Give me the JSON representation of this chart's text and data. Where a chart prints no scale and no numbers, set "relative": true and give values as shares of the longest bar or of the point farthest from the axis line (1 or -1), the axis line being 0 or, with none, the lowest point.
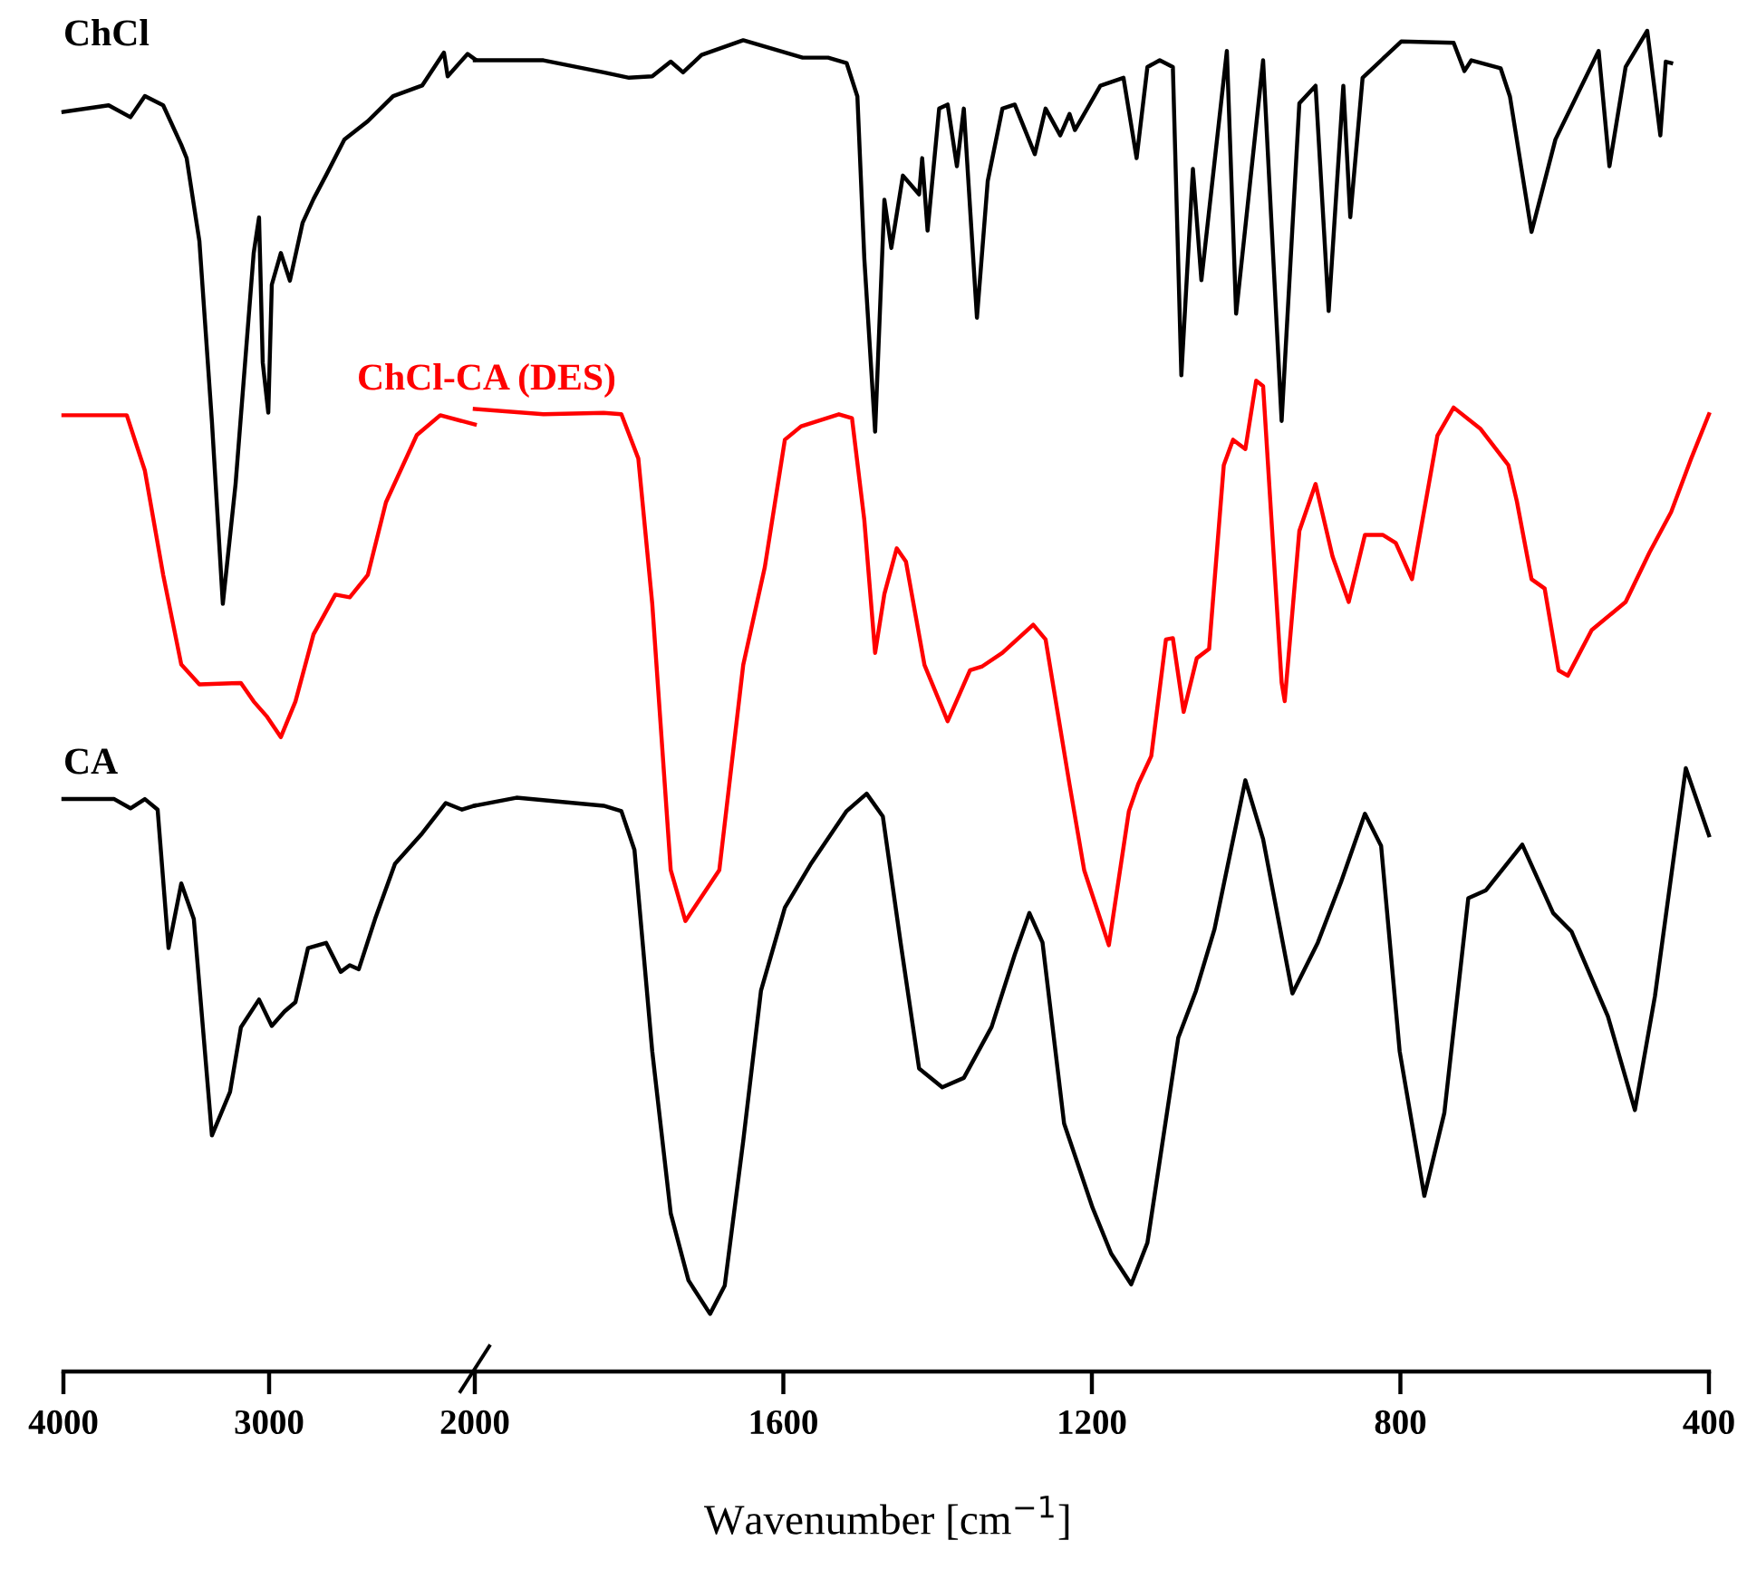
{
  "chart_data": [
    {
      "type": "line",
      "relative": true,
      "xlim": [
        4000,
        2000
      ],
      "xticks": [
        4000,
        3000,
        2000
      ],
      "line_style": "solid",
      "series": [
        {
          "name": "ChCl",
          "color": "#000000",
          "x": [
            4000,
            3780,
            3674,
            3604,
            3515,
            3427,
            3401,
            3339,
            3278,
            3225,
            3163,
            3075,
            3049,
            3031,
            3004,
            2987,
            2943,
            2899,
            2837,
            2784,
            2723,
            2634,
            2520,
            2397,
            2256,
            2150,
            2132,
            2035,
            2000
          ],
          "values": [
            0.955,
            0.96,
            0.951,
            0.967,
            0.96,
            0.93,
            0.92,
            0.857,
            0.72,
            0.582,
            0.673,
            0.848,
            0.875,
            0.765,
            0.727,
            0.824,
            0.848,
            0.827,
            0.871,
            0.889,
            0.907,
            0.934,
            0.948,
            0.967,
            0.975,
            1.0,
            0.982,
            0.999,
            0.995
          ]
        },
        {
          "name": "ChCl-CA (DES)",
          "color": "#ff0000",
          "x": [
            4000,
            3692,
            3604,
            3515,
            3427,
            3339,
            3137,
            3075,
            3013,
            2943,
            2872,
            2784,
            2678,
            2608,
            2520,
            2432,
            2282,
            2168,
            2000
          ],
          "values": [
            0.725,
            0.725,
            0.683,
            0.604,
            0.536,
            0.521,
            0.522,
            0.508,
            0.497,
            0.481,
            0.508,
            0.559,
            0.589,
            0.587,
            0.604,
            0.659,
            0.71,
            0.725,
            0.718
          ]
        },
        {
          "name": "CA",
          "color": "#000000",
          "x": [
            4000,
            3753,
            3674,
            3604,
            3542,
            3489,
            3427,
            3366,
            3278,
            3190,
            3137,
            3049,
            2987,
            2925,
            2872,
            2811,
            2723,
            2652,
            2608,
            2564,
            2485,
            2388,
            2256,
            2141,
            2062,
            2000
          ],
          "values": [
            0.434,
            0.434,
            0.427,
            0.434,
            0.426,
            0.321,
            0.37,
            0.343,
            0.179,
            0.212,
            0.261,
            0.282,
            0.262,
            0.273,
            0.28,
            0.321,
            0.325,
            0.303,
            0.308,
            0.305,
            0.343,
            0.385,
            0.408,
            0.431,
            0.426,
            0.429
          ]
        }
      ]
    },
    {
      "type": "line",
      "relative": true,
      "xlim": [
        2000,
        400
      ],
      "xticks": [
        1600,
        1200,
        800,
        400
      ],
      "xlabel": "Wavenumber [cm$^{−1}$]",
      "line_style": "solid",
      "series": [
        {
          "color": "#000000",
          "x": [
            2000,
            1911,
            1833,
            1800,
            1770,
            1746,
            1730,
            1706,
            1652,
            1575,
            1542,
            1518,
            1504,
            1495,
            1481,
            1469,
            1460,
            1445,
            1424,
            1420,
            1413,
            1398,
            1387,
            1375,
            1366,
            1349,
            1335,
            1316,
            1300,
            1274,
            1260,
            1241,
            1229,
            1222,
            1189,
            1159,
            1142,
            1128,
            1112,
            1095,
            1084,
            1069,
            1058,
            1025,
            1013,
            978,
            954,
            931,
            910,
            893,
            874,
            865,
            849,
            799,
            731,
            717,
            708,
            670,
            658,
            630,
            599,
            543,
            529,
            508,
            480,
            463,
            456,
            449
          ],
          "values": [
            0.978,
            0.978,
            0.969,
            0.965,
            0.966,
            0.977,
            0.969,
            0.982,
            0.993,
            0.98,
            0.98,
            0.976,
            0.951,
            0.83,
            0.701,
            0.874,
            0.838,
            0.892,
            0.878,
            0.905,
            0.851,
            0.942,
            0.945,
            0.899,
            0.942,
            0.786,
            0.888,
            0.942,
            0.945,
            0.908,
            0.942,
            0.922,
            0.938,
            0.926,
            0.959,
            0.965,
            0.905,
            0.973,
            0.978,
            0.973,
            0.743,
            0.897,
            0.814,
            0.985,
            0.789,
            0.978,
            0.709,
            0.946,
            0.959,
            0.791,
            0.959,
            0.861,
            0.965,
            0.992,
            0.991,
            0.97,
            0.978,
            0.972,
            0.951,
            0.85,
            0.919,
            0.985,
            0.899,
            0.973,
            1.0,
            0.922,
            0.977,
            0.976
          ]
        },
        {
          "color": "#ff0000",
          "x": [
            2000,
            1911,
            1833,
            1810,
            1788,
            1770,
            1746,
            1727,
            1683,
            1652,
            1624,
            1598,
            1577,
            1528,
            1511,
            1495,
            1481,
            1469,
            1453,
            1441,
            1417,
            1387,
            1358,
            1342,
            1316,
            1276,
            1260,
            1229,
            1210,
            1178,
            1152,
            1140,
            1123,
            1104,
            1095,
            1081,
            1064,
            1048,
            1029,
            1017,
            1001,
            987,
            978,
            954,
            950,
            931,
            910,
            888,
            867,
            846,
            823,
            806,
            785,
            752,
            731,
            696,
            660,
            649,
            630,
            613,
            595,
            583,
            552,
            508,
            477,
            449,
            423,
            400
          ],
          "values": [
            0.718,
            0.714,
            0.715,
            0.714,
            0.681,
            0.573,
            0.374,
            0.336,
            0.374,
            0.527,
            0.6,
            0.695,
            0.705,
            0.714,
            0.711,
            0.635,
            0.536,
            0.58,
            0.614,
            0.604,
            0.527,
            0.485,
            0.523,
            0.526,
            0.536,
            0.557,
            0.546,
            0.438,
            0.374,
            0.318,
            0.418,
            0.438,
            0.459,
            0.546,
            0.547,
            0.492,
            0.532,
            0.539,
            0.676,
            0.695,
            0.688,
            0.739,
            0.735,
            0.514,
            0.5,
            0.627,
            0.662,
            0.608,
            0.574,
            0.624,
            0.624,
            0.618,
            0.591,
            0.698,
            0.719,
            0.703,
            0.676,
            0.649,
            0.591,
            0.584,
            0.523,
            0.519,
            0.553,
            0.574,
            0.611,
            0.641,
            0.681,
            0.714
          ]
        },
        {
          "color": "#000000",
          "x": [
            2000,
            1946,
            1833,
            1810,
            1793,
            1770,
            1746,
            1723,
            1695,
            1676,
            1652,
            1629,
            1598,
            1565,
            1518,
            1492,
            1471,
            1448,
            1424,
            1394,
            1366,
            1330,
            1300,
            1281,
            1264,
            1236,
            1199,
            1175,
            1149,
            1128,
            1088,
            1065,
            1041,
            1001,
            978,
            940,
            907,
            877,
            846,
            825,
            801,
            769,
            743,
            712,
            689,
            642,
            602,
            578,
            531,
            496,
            470,
            430,
            400
          ],
          "values": [
            0.422,
            0.428,
            0.422,
            0.418,
            0.389,
            0.239,
            0.118,
            0.068,
            0.043,
            0.064,
            0.172,
            0.284,
            0.346,
            0.378,
            0.418,
            0.431,
            0.414,
            0.32,
            0.226,
            0.212,
            0.219,
            0.257,
            0.311,
            0.342,
            0.32,
            0.185,
            0.122,
            0.088,
            0.065,
            0.096,
            0.249,
            0.284,
            0.33,
            0.441,
            0.397,
            0.282,
            0.32,
            0.365,
            0.416,
            0.392,
            0.239,
            0.131,
            0.193,
            0.353,
            0.359,
            0.393,
            0.342,
            0.328,
            0.265,
            0.195,
            0.28,
            0.45,
            0.4
          ]
        }
      ]
    }
  ]
}
